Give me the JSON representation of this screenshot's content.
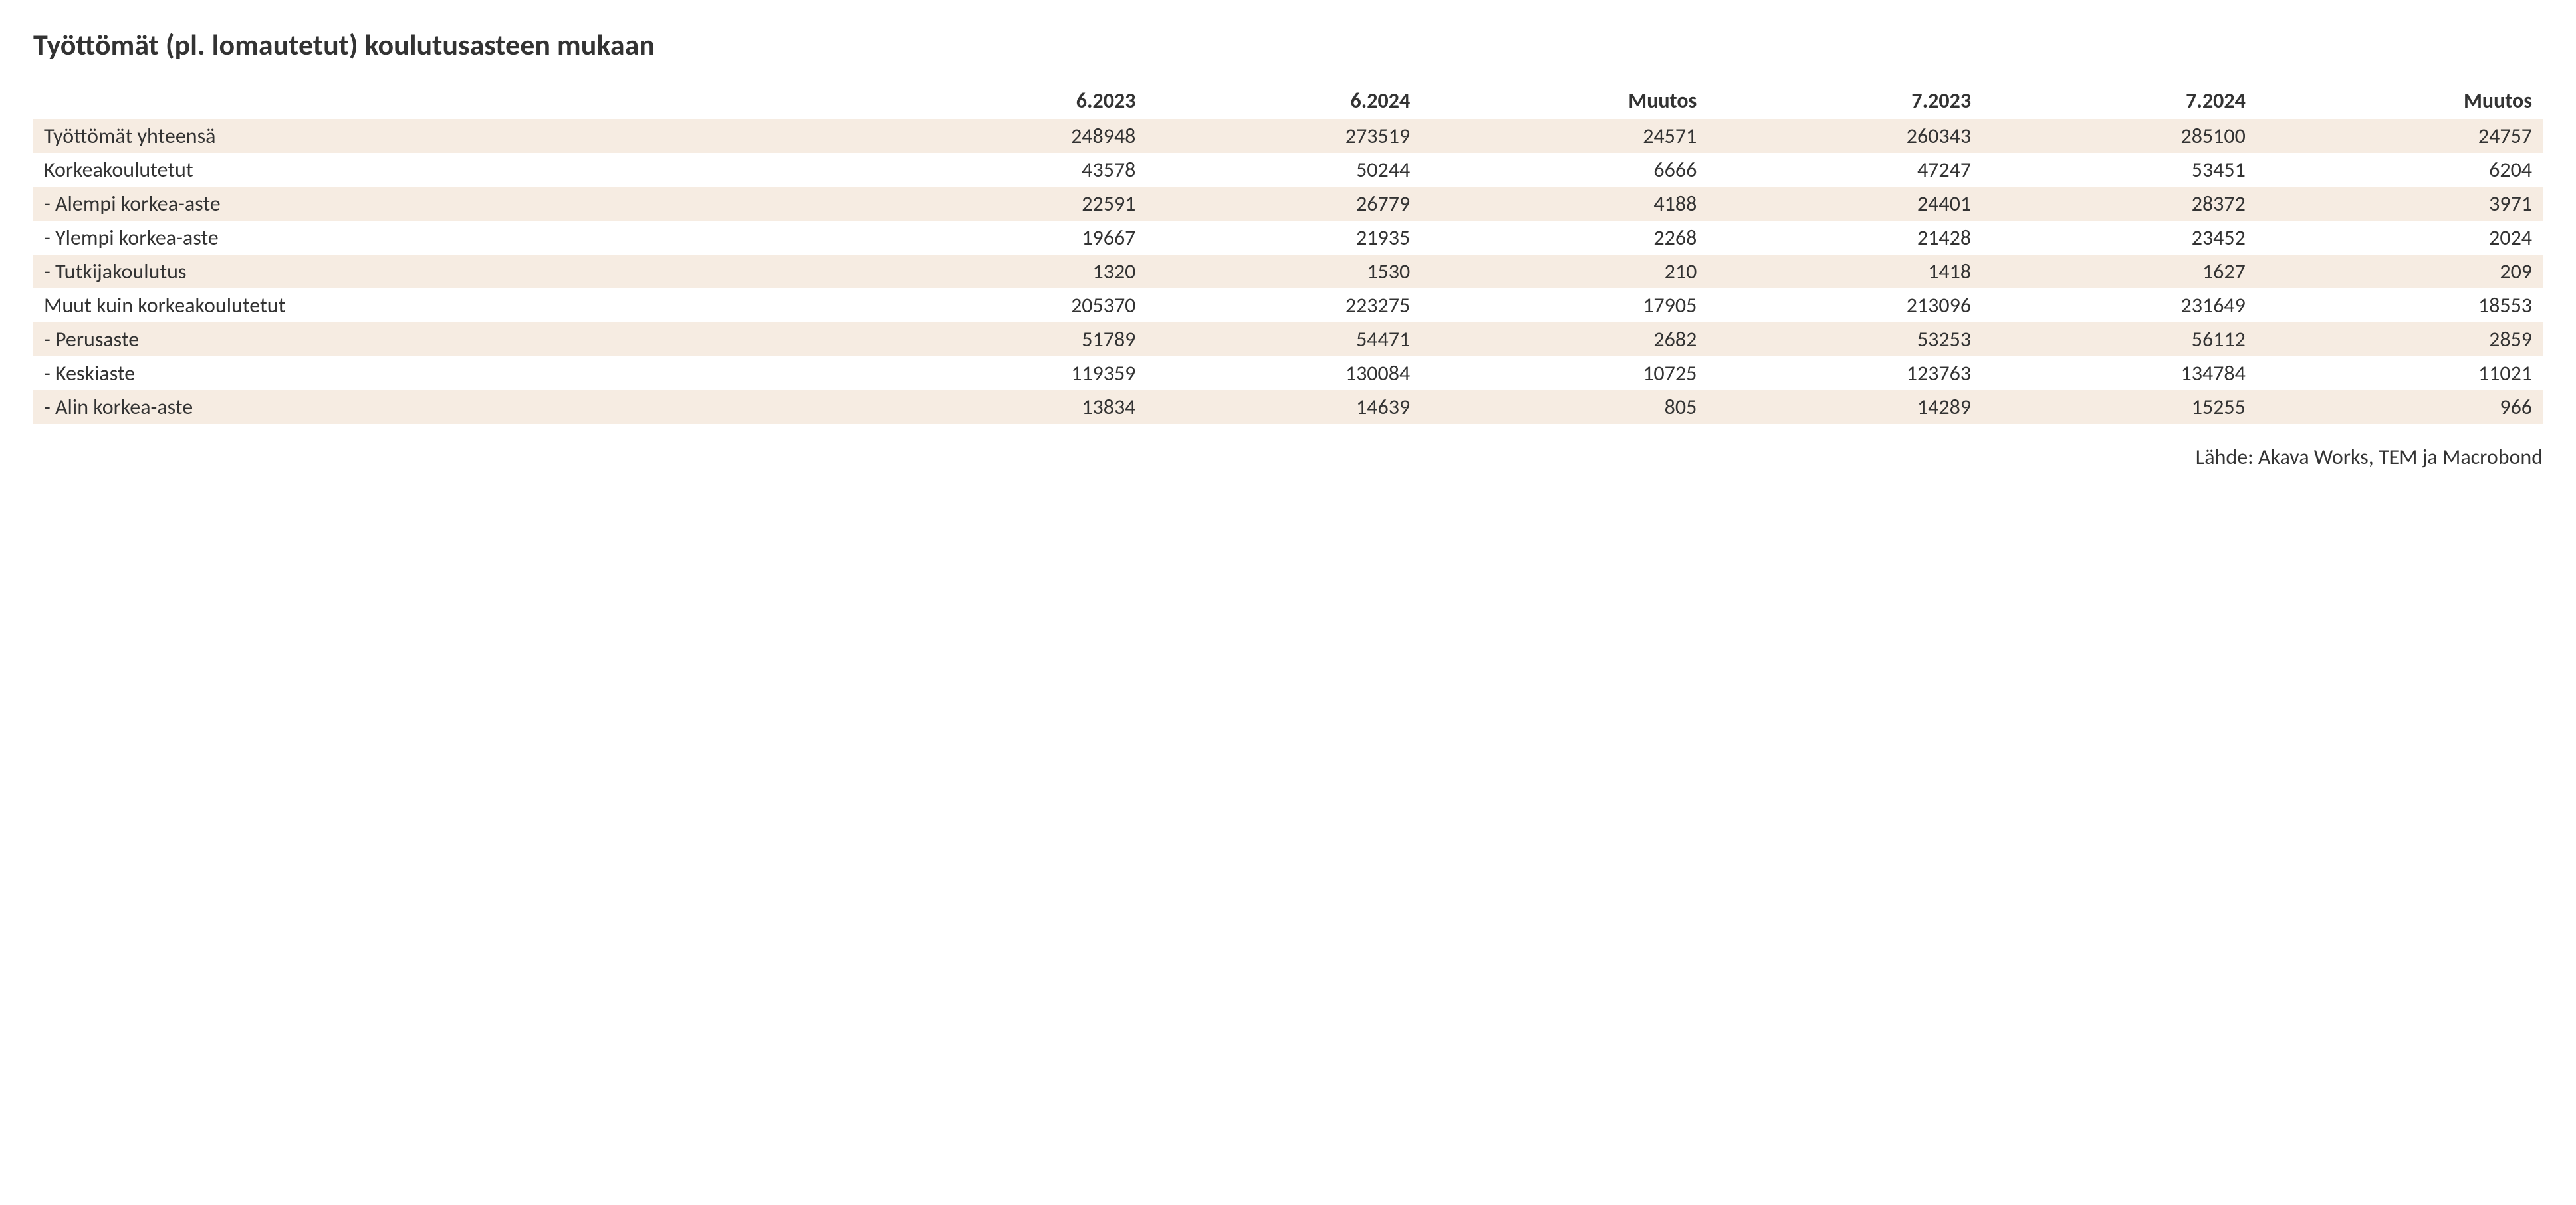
{
  "title": "Työttömät (pl. lomautetut) koulutusasteen mukaan",
  "source": "Lähde: Akava Works, TEM ja Macrobond",
  "table": {
    "type": "table",
    "background_color": "#ffffff",
    "stripe_color": "#f6ece2",
    "text_color": "#333333",
    "header_fontsize": 32,
    "cell_fontsize": 32,
    "title_fontsize": 44,
    "columns": [
      "",
      "6.2023",
      "6.2024",
      "Muutos",
      "7.2023",
      "7.2024",
      "Muutos"
    ],
    "column_alignment": [
      "left",
      "right",
      "right",
      "right",
      "right",
      "right",
      "right"
    ],
    "rows": [
      {
        "label": "Työttömät yhteensä",
        "values": [
          248948,
          273519,
          24571,
          260343,
          285100,
          24757
        ],
        "striped": true
      },
      {
        "label": "Korkeakoulutetut",
        "values": [
          43578,
          50244,
          6666,
          47247,
          53451,
          6204
        ],
        "striped": false
      },
      {
        "label": "- Alempi korkea-aste",
        "values": [
          22591,
          26779,
          4188,
          24401,
          28372,
          3971
        ],
        "striped": true
      },
      {
        "label": "- Ylempi korkea-aste",
        "values": [
          19667,
          21935,
          2268,
          21428,
          23452,
          2024
        ],
        "striped": false
      },
      {
        "label": "- Tutkijakoulutus",
        "values": [
          1320,
          1530,
          210,
          1418,
          1627,
          209
        ],
        "striped": true
      },
      {
        "label": "Muut kuin korkeakoulutetut",
        "values": [
          205370,
          223275,
          17905,
          213096,
          231649,
          18553
        ],
        "striped": false
      },
      {
        "label": "- Perusaste",
        "values": [
          51789,
          54471,
          2682,
          53253,
          56112,
          2859
        ],
        "striped": true
      },
      {
        "label": "- Keskiaste",
        "values": [
          119359,
          130084,
          10725,
          123763,
          134784,
          11021
        ],
        "striped": false
      },
      {
        "label": "- Alin korkea-aste",
        "values": [
          13834,
          14639,
          805,
          14289,
          15255,
          966
        ],
        "striped": true
      }
    ]
  }
}
